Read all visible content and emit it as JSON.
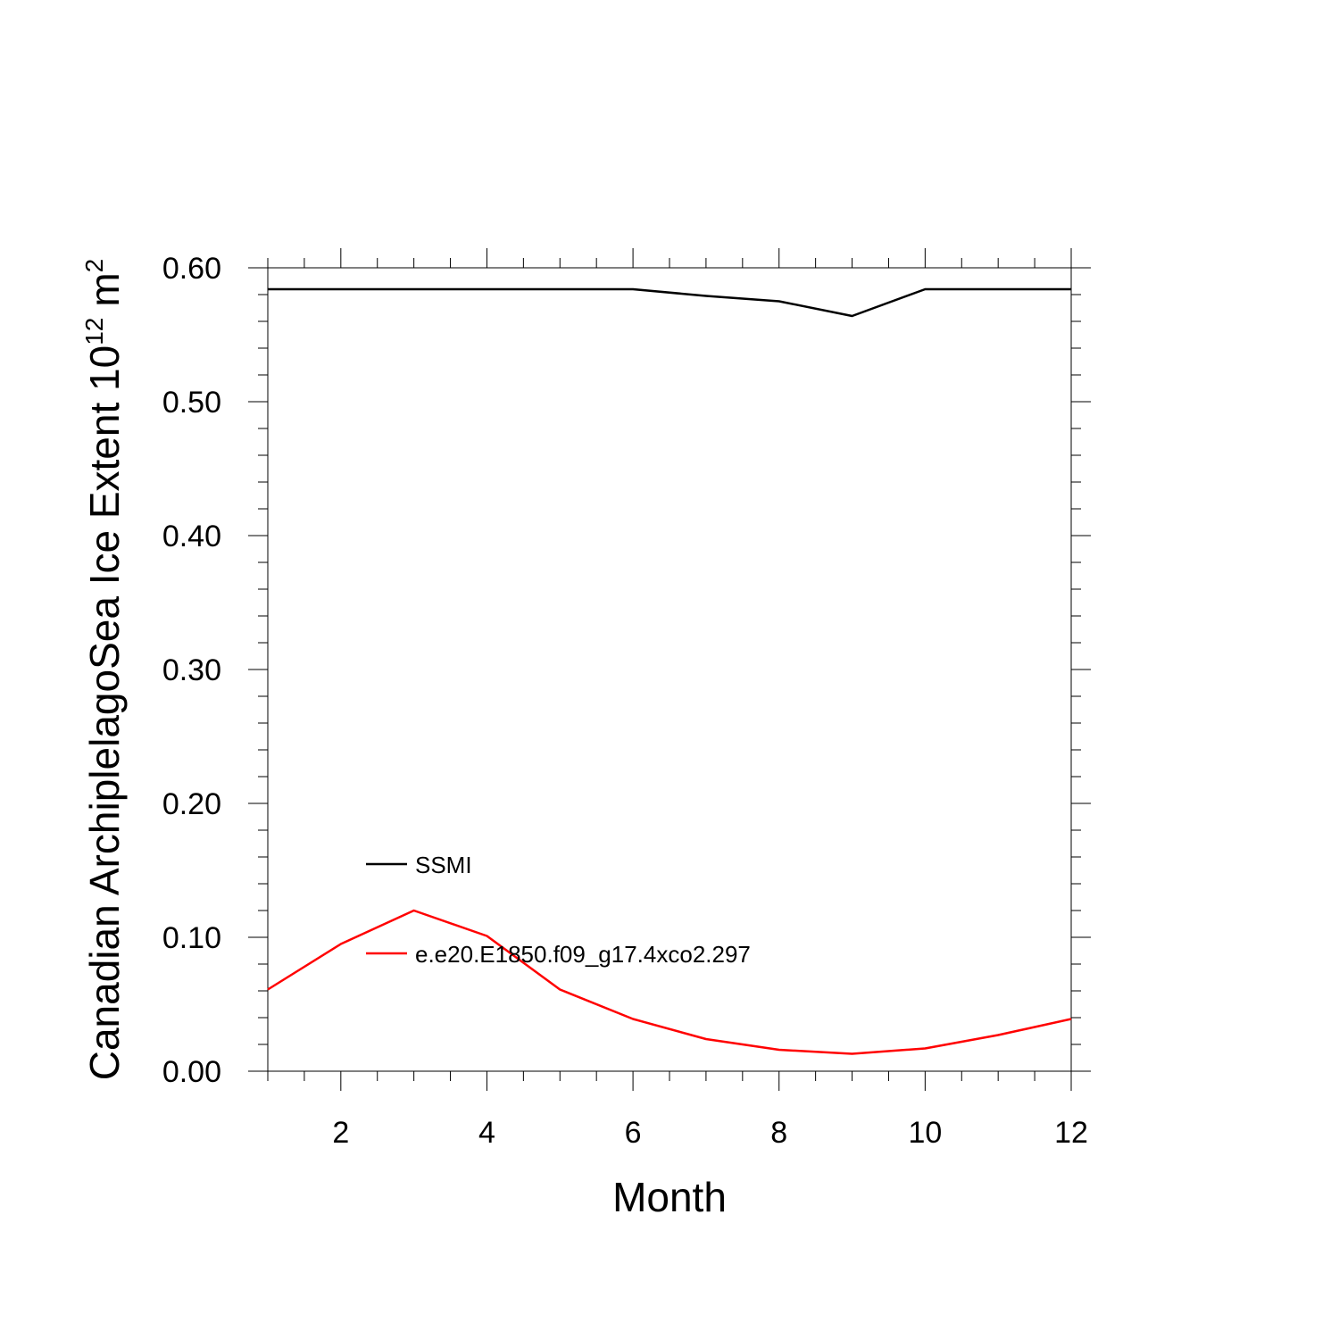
{
  "chart_data": {
    "type": "line",
    "title": "",
    "xlabel": "Month",
    "ylabel": "Canadian ArchiplelagoSea Ice Extent 10",
    "ylabel_superscript": "12",
    "ylabel_unit": "m",
    "ylabel_unit_superscript": "2",
    "xlim": [
      1,
      12
    ],
    "ylim": [
      0,
      0.6
    ],
    "x_ticks": [
      2,
      4,
      6,
      8,
      10,
      12
    ],
    "x_tick_labels": [
      "2",
      "4",
      "6",
      "8",
      "10",
      "12"
    ],
    "y_ticks": [
      0,
      0.1,
      0.2,
      0.3,
      0.4,
      0.5,
      0.6
    ],
    "y_tick_labels": [
      "0.00",
      "0.10",
      "0.20",
      "0.30",
      "0.40",
      "0.50",
      "0.60"
    ],
    "grid": false,
    "legend_position": "lower-left inside",
    "x": [
      1,
      2,
      3,
      4,
      5,
      6,
      7,
      8,
      9,
      10,
      11,
      12
    ],
    "series": [
      {
        "name": "SSMI",
        "color": "#000000",
        "values": [
          0.584,
          0.584,
          0.584,
          0.584,
          0.584,
          0.584,
          0.579,
          0.575,
          0.564,
          0.584,
          0.584,
          0.584
        ]
      },
      {
        "name": "e.e20.E1850.f09_g17.4xco2.297",
        "color": "#ff0000",
        "values": [
          0.061,
          0.095,
          0.12,
          0.101,
          0.061,
          0.039,
          0.024,
          0.016,
          0.013,
          0.017,
          0.027,
          0.039
        ]
      }
    ]
  }
}
